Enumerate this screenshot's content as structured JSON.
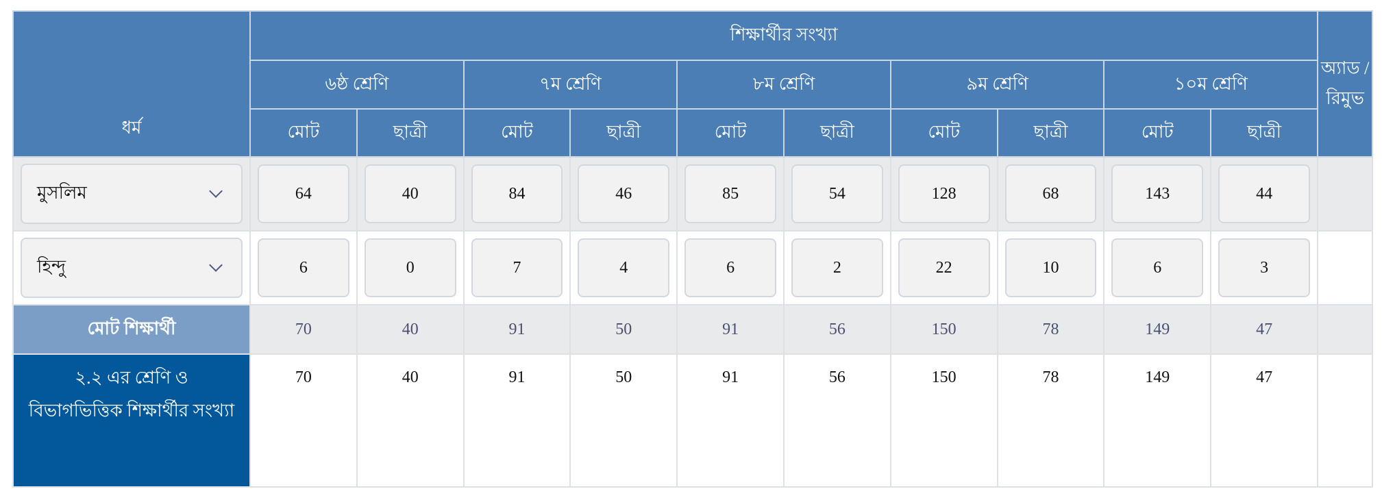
{
  "header": {
    "religion_label": "ধর্ম",
    "students_label": "শিক্ষার্থীর সংখ্যা",
    "action_label": "অ্যাড / রিমুভ",
    "classes": [
      "৬ষ্ঠ শ্রেণি",
      "৭ম শ্রেণি",
      "৮ম শ্রেণি",
      "৯ম শ্রেণি",
      "১০ম শ্রেণি"
    ],
    "total_label": "মোট",
    "girls_label": "ছাত্রী"
  },
  "rows": [
    {
      "religion": "মুসলিম",
      "values": [
        "64",
        "40",
        "84",
        "46",
        "85",
        "54",
        "128",
        "68",
        "143",
        "44"
      ]
    },
    {
      "religion": "হিন্দু",
      "values": [
        "6",
        "0",
        "7",
        "4",
        "6",
        "2",
        "22",
        "10",
        "6",
        "3"
      ]
    }
  ],
  "totals": {
    "label": "মোট শিক্ষার্থী",
    "values": [
      "70",
      "40",
      "91",
      "50",
      "91",
      "56",
      "150",
      "78",
      "149",
      "47"
    ]
  },
  "reference": {
    "label": "২.২ এর শ্রেণি ও বিভাগভিত্তিক শিক্ষার্থীর সংখ্যা",
    "values": [
      "70",
      "40",
      "91",
      "50",
      "91",
      "56",
      "150",
      "78",
      "149",
      "47"
    ]
  }
}
